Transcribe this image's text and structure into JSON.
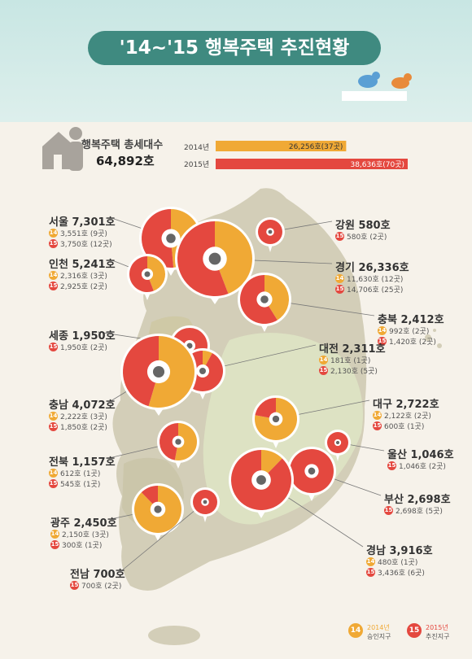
{
  "title": "'14~'15 행복주택 추진현황",
  "total": {
    "label": "행복주택 총세대수",
    "value": "64,892호"
  },
  "years": [
    {
      "label": "2014년",
      "value": "26,256호(37곳)",
      "amount": 26256,
      "color": "#f0a935"
    },
    {
      "label": "2015년",
      "value": "38,636호(70곳)",
      "amount": 38636,
      "color": "#e4483f"
    }
  ],
  "legend": [
    {
      "badge": "14",
      "line1": "2014년",
      "line2": "승인지구",
      "color": "#f0a935"
    },
    {
      "badge": "15",
      "line1": "2015년",
      "line2": "추진지구",
      "color": "#e4483f"
    }
  ],
  "chart_data": {
    "type": "pie",
    "title": "'14~'15 행복주택 추진현황",
    "regions": [
      {
        "name": "서울 7,301호",
        "y2014": "3,551호 (9곳)",
        "y2015": "3,750호 (12곳)",
        "v14": 3551,
        "v15": 3750
      },
      {
        "name": "강원 580호",
        "y2014": "",
        "y2015": "580호 (2곳)",
        "v14": 0,
        "v15": 580
      },
      {
        "name": "인천 5,241호",
        "y2014": "2,316호 (3곳)",
        "y2015": "2,925호 (2곳)",
        "v14": 2316,
        "v15": 2925
      },
      {
        "name": "경기 26,336호",
        "y2014": "11,630호 (12곳)",
        "y2015": "14,706호 (25곳)",
        "v14": 11630,
        "v15": 14706
      },
      {
        "name": "충북 2,412호",
        "y2014": "992호 (2곳)",
        "y2015": "1,420호 (2곳)",
        "v14": 992,
        "v15": 1420
      },
      {
        "name": "세종 1,950호",
        "y2014": "",
        "y2015": "1,950호 (2곳)",
        "v14": 0,
        "v15": 1950
      },
      {
        "name": "대전 2,311호",
        "y2014": "181호 (1곳)",
        "y2015": "2,130호 (5곳)",
        "v14": 181,
        "v15": 2130
      },
      {
        "name": "충남 4,072호",
        "y2014": "2,222호 (3곳)",
        "y2015": "1,850호 (2곳)",
        "v14": 2222,
        "v15": 1850
      },
      {
        "name": "대구 2,722호",
        "y2014": "2,122호 (2곳)",
        "y2015": "600호 (1곳)",
        "v14": 2122,
        "v15": 600
      },
      {
        "name": "전북 1,157호",
        "y2014": "612호 (1곳)",
        "y2015": "545호 (1곳)",
        "v14": 612,
        "v15": 545
      },
      {
        "name": "울산 1,046호",
        "y2014": "",
        "y2015": "1,046호 (2곳)",
        "v14": 0,
        "v15": 1046
      },
      {
        "name": "부산 2,698호",
        "y2014": "",
        "y2015": "2,698호 (5곳)",
        "v14": 0,
        "v15": 2698
      },
      {
        "name": "광주 2,450호",
        "y2014": "2,150호 (3곳)",
        "y2015": "300호 (1곳)",
        "v14": 2150,
        "v15": 300
      },
      {
        "name": "경남 3,916호",
        "y2014": "480호 (1곳)",
        "y2015": "3,436호 (6곳)",
        "v14": 480,
        "v15": 3436
      },
      {
        "name": "전남 700호",
        "y2014": "",
        "y2015": "700호 (2곳)",
        "v14": 0,
        "v15": 700
      }
    ]
  }
}
